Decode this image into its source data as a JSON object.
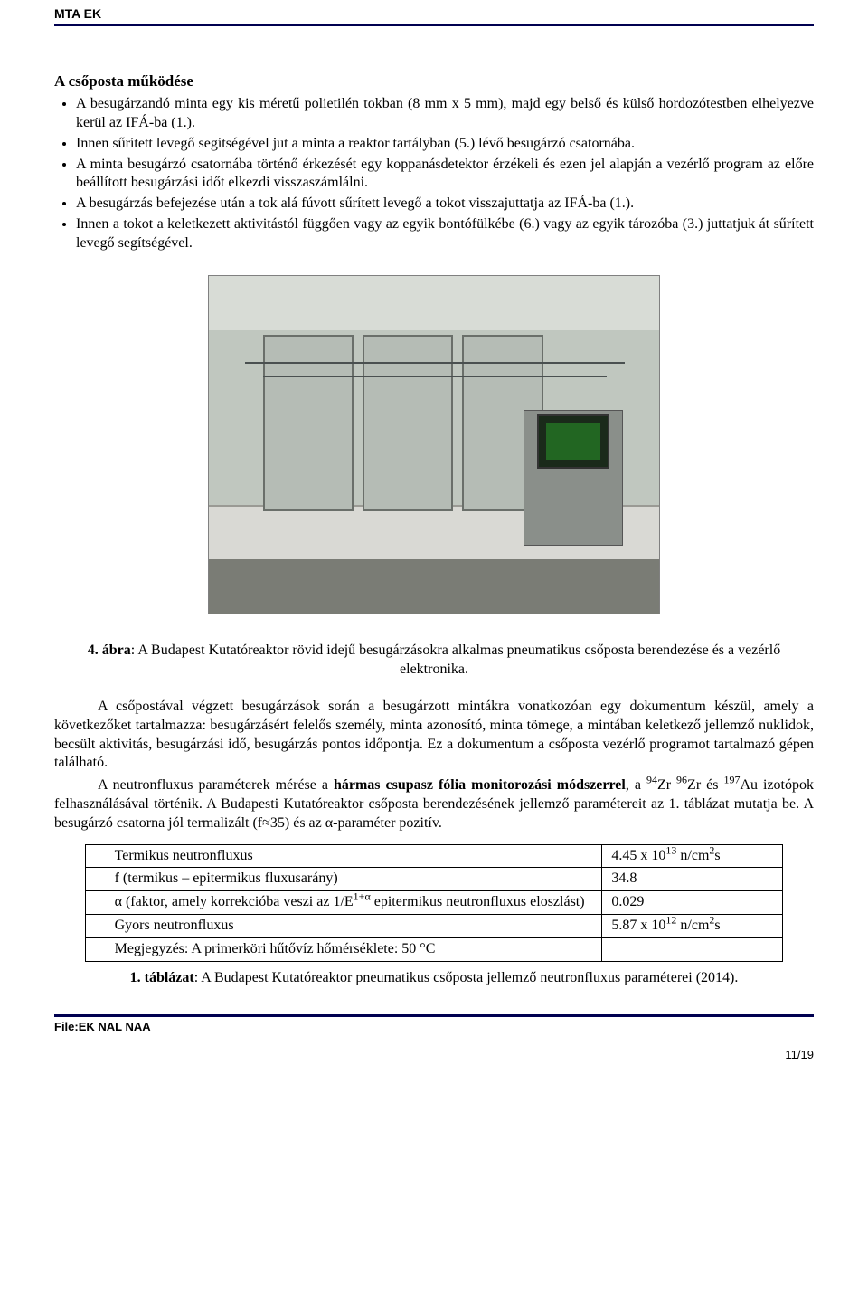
{
  "header": {
    "org": "MTA EK"
  },
  "section_title": "A csőposta működése",
  "bullets": [
    "A besugárzandó minta egy kis méretű polietilén tokban (8 mm x 5 mm), majd egy belső és külső hordozótestben elhelyezve kerül az IFÁ-ba (1.).",
    "Innen sűrített levegő segítségével jut a minta a reaktor tartályban (5.) lévő besugárzó csatornába.",
    "A minta besugárzó csatornába történő érkezését egy koppanásdetektor érzékeli és ezen jel alapján a vezérlő program az előre beállított besugárzási időt elkezdi visszaszámlálni.",
    "A besugárzás befejezése után a tok alá fúvott sűrített levegő a tokot visszajuttatja az IFÁ-ba (1.).",
    "Innen a tokot a keletkezett aktivitástól függően vagy az egyik bontófülkébe (6.) vagy az egyik tározóba (3.) juttatjuk át sűrített levegő segítségével."
  ],
  "figure_caption": {
    "label": "4. ábra",
    "text": ": A Budapest Kutatóreaktor rövid idejű besugárzásokra alkalmas pneumatikus csőposta berendezése és a vezérlő elektronika."
  },
  "paragraphs": [
    "A csőpostával végzett besugárzások során a besugárzott mintákra vonatkozóan egy dokumentum készül, amely a következőket tartalmazza: besugárzásért felelős személy, minta azonosító, minta tömege, a mintában keletkező jellemző nuklidok, becsült aktivitás, besugárzási idő, besugárzás pontos időpontja. Ez a dokumentum a csőposta vezérlő programot tartalmazó gépen található."
  ],
  "neutron_para": {
    "first": "A neutronfluxus paraméterek mérése a ",
    "bold": "hármas csupasz fólia monitorozási módszerrel",
    "rest": ", a <sup>94</sup>Zr <sup>96</sup>Zr és <sup>197</sup>Au izotópok felhasználásával történik. A Budapesti Kutatóreaktor csőposta berendezésének jellemző paramétereit az 1. táblázat mutatja be. A besugárzó csatorna jól termalizált (f≈35) és az α-paraméter pozitív."
  },
  "table": {
    "rows": [
      {
        "label": "Termikus neutronfluxus",
        "value_html": "4.45 x 10<sup>13</sup> n/cm<sup>2</sup>s"
      },
      {
        "label": "f (termikus – epitermikus fluxusarány)",
        "value_html": "34.8"
      },
      {
        "label_html": "α (faktor, amely korrekcióba veszi az 1/E<sup>1+α</sup> epitermikus neutronfluxus eloszlást)",
        "value_html": "0.029"
      },
      {
        "label": "Gyors neutronfluxus",
        "value_html": "5.87 x 10<sup>12</sup> n/cm<sup>2</sup>s"
      },
      {
        "label": "Megjegyzés: A primerköri hűtővíz hőmérséklete: 50 °C",
        "value_html": ""
      }
    ]
  },
  "table_caption": {
    "label": "1. táblázat",
    "text": ": A Budapest Kutatóreaktor pneumatikus csőposta jellemző neutronfluxus paraméterei (2014)."
  },
  "footer": {
    "file": "File:EK NAL NAA",
    "page": "11/19"
  },
  "photo": {
    "colors": {
      "ceiling": "#d8dcd6",
      "wall": "#c0c7bf",
      "bench": "#d9d9d4",
      "floor": "#7a7c75",
      "frame_border": "#6a6f6a",
      "pc": "#8a8f8a",
      "screen": "#1a2a1a",
      "screen_inner": "#226622",
      "cable": "#4a5050"
    }
  }
}
